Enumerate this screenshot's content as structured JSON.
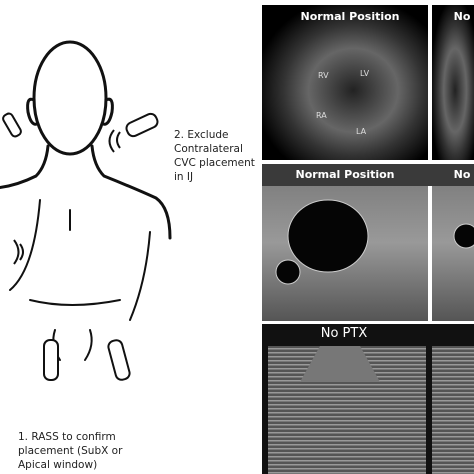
{
  "left_figure": {
    "callouts": [
      {
        "lines": [
          "2. Exclude",
          "Contralateral",
          "CVC placement",
          "in IJ"
        ]
      },
      {
        "lines": [
          "1. RASS to confirm",
          "placement (SubX or",
          "Apical window)"
        ]
      }
    ]
  },
  "panels": [
    {
      "title": "Normal Position",
      "labels": [
        "RV",
        "LV",
        "RA",
        "LA"
      ]
    },
    {
      "title": "No"
    },
    {
      "title": "Normal Position"
    },
    {
      "title": "No"
    },
    {
      "title": "No PTX"
    }
  ]
}
